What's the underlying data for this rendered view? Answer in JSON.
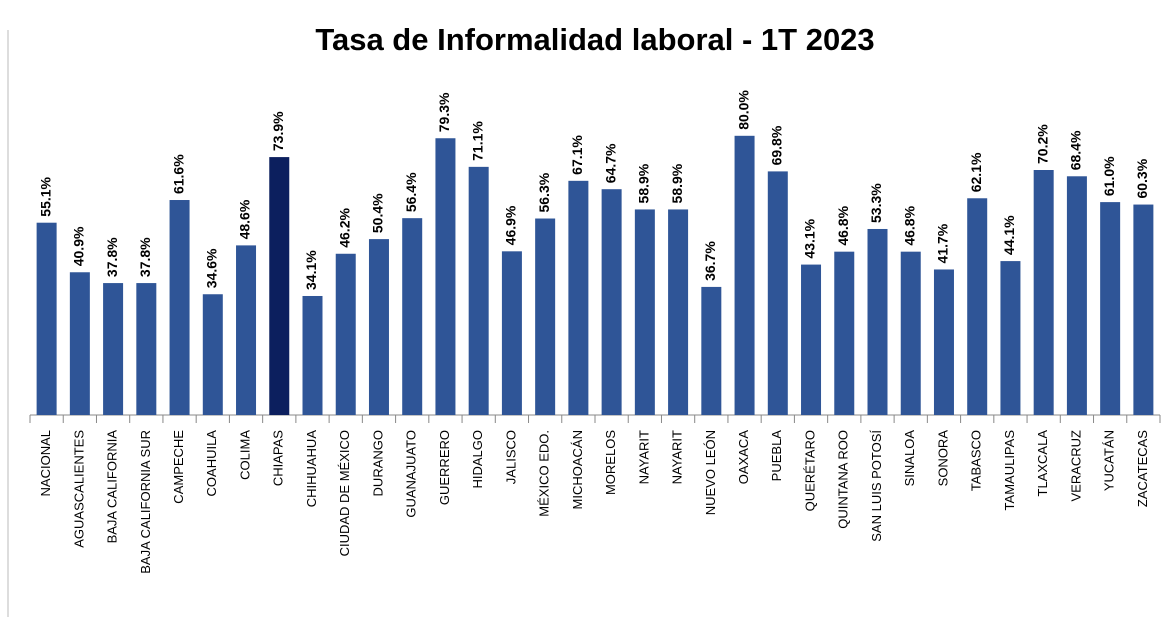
{
  "chart_data": {
    "type": "bar",
    "title": "Tasa de Informalidad laboral - 1T 2023",
    "categories": [
      "NACIONAL",
      "AGUASCALIENTES",
      "BAJA CALIFORNIA",
      "BAJA CALIFORNIA SUR",
      "CAMPECHE",
      "COAHUILA",
      "COLIMA",
      "CHIAPAS",
      "CHIHUAHUA",
      "CIUDAD DE MÉXICO",
      "DURANGO",
      "GUANAJUATO",
      "GUERRERO",
      "HIDALGO",
      "JALISCO",
      "MÉXICO EDO.",
      "MICHOACÁN",
      "MORELOS",
      "NAYARIT",
      "NAYARIT",
      "NUEVO LEÓN",
      "OAXACA",
      "PUEBLA",
      "QUERÉTARO",
      "QUINTANA ROO",
      "SAN LUIS POTOSÍ",
      "SINALOA",
      "SONORA",
      "TABASCO",
      "TAMAULIPAS",
      "TLAXCALA",
      "VERACRUZ",
      "YUCATÁN",
      "ZACATECAS"
    ],
    "values": [
      55.1,
      40.9,
      37.8,
      37.8,
      61.6,
      34.6,
      48.6,
      73.9,
      34.1,
      46.2,
      50.4,
      56.4,
      79.3,
      71.1,
      46.9,
      56.3,
      67.1,
      64.7,
      58.9,
      58.9,
      36.7,
      80.0,
      69.8,
      43.1,
      46.8,
      53.3,
      46.8,
      41.7,
      62.1,
      44.1,
      70.2,
      68.4,
      61.0,
      60.3
    ],
    "value_labels": [
      "55.1%",
      "40.9%",
      "37.8%",
      "37.8%",
      "61.6%",
      "34.6%",
      "48.6%",
      "73.9%",
      "34.1%",
      "46.2%",
      "50.4%",
      "56.4%",
      "79.3%",
      "71.1%",
      "46.9%",
      "56.3%",
      "67.1%",
      "64.7%",
      "58.9%",
      "58.9%",
      "36.7%",
      "80.0%",
      "69.8%",
      "43.1%",
      "46.8%",
      "53.3%",
      "46.8%",
      "41.7%",
      "62.1%",
      "44.1%",
      "70.2%",
      "68.4%",
      "61.0%",
      "60.3%"
    ],
    "colors": [
      "#2f5597",
      "#2f5597",
      "#2f5597",
      "#2f5597",
      "#2f5597",
      "#2f5597",
      "#2f5597",
      "#0c1f5e",
      "#2f5597",
      "#2f5597",
      "#2f5597",
      "#2f5597",
      "#2f5597",
      "#2f5597",
      "#2f5597",
      "#2f5597",
      "#2f5597",
      "#2f5597",
      "#2f5597",
      "#2f5597",
      "#2f5597",
      "#2f5597",
      "#2f5597",
      "#2f5597",
      "#2f5597",
      "#2f5597",
      "#2f5597",
      "#2f5597",
      "#2f5597",
      "#2f5597",
      "#2f5597",
      "#2f5597",
      "#2f5597",
      "#2f5597"
    ],
    "ylim": [
      0,
      100
    ]
  }
}
